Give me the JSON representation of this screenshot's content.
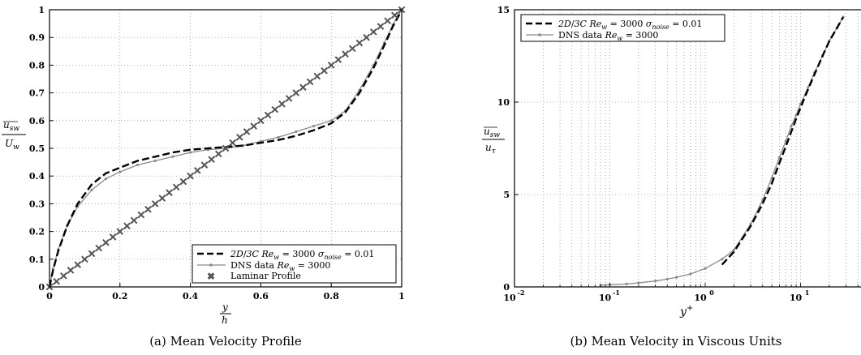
{
  "chart_data": [
    {
      "type": "line",
      "caption": "(a) Mean Velocity Profile",
      "xlabel": "y/h",
      "ylabel": "ū_sw / U_w",
      "xlim": [
        0,
        1
      ],
      "ylim": [
        0,
        1
      ],
      "xticks": [
        "0",
        "0.2",
        "0.4",
        "0.6",
        "0.8",
        "1"
      ],
      "yticks": [
        "0",
        "0.1",
        "0.2",
        "0.3",
        "0.4",
        "0.5",
        "0.6",
        "0.7",
        "0.8",
        "0.9",
        "1"
      ],
      "grid": true,
      "legend_position": "bottom-right",
      "series": [
        {
          "name": "2D/3C Re_w = 3000 σ_noise = 0.01",
          "style": "dashed",
          "color": "#000000",
          "x": [
            0,
            0.01,
            0.025,
            0.05,
            0.08,
            0.12,
            0.16,
            0.2,
            0.25,
            0.3,
            0.35,
            0.4,
            0.45,
            0.5,
            0.55,
            0.6,
            0.65,
            0.7,
            0.75,
            0.8,
            0.84,
            0.88,
            0.92,
            0.95,
            0.975,
            0.99,
            1
          ],
          "y": [
            0,
            0.06,
            0.13,
            0.22,
            0.3,
            0.37,
            0.41,
            0.43,
            0.455,
            0.47,
            0.485,
            0.495,
            0.5,
            0.505,
            0.51,
            0.52,
            0.53,
            0.545,
            0.565,
            0.59,
            0.63,
            0.7,
            0.79,
            0.87,
            0.94,
            0.975,
            1
          ]
        },
        {
          "name": "DNS data Re_w = 3000",
          "style": "solid-dot",
          "color": "#8a8a8a",
          "x": [
            0,
            0.01,
            0.025,
            0.05,
            0.08,
            0.12,
            0.16,
            0.2,
            0.25,
            0.3,
            0.35,
            0.4,
            0.45,
            0.5,
            0.55,
            0.6,
            0.65,
            0.7,
            0.75,
            0.8,
            0.84,
            0.88,
            0.92,
            0.95,
            0.975,
            0.99,
            1
          ],
          "y": [
            0,
            0.065,
            0.135,
            0.22,
            0.29,
            0.35,
            0.39,
            0.415,
            0.44,
            0.455,
            0.47,
            0.485,
            0.495,
            0.5,
            0.51,
            0.525,
            0.54,
            0.56,
            0.58,
            0.6,
            0.635,
            0.71,
            0.8,
            0.88,
            0.945,
            0.98,
            1
          ]
        },
        {
          "name": "Laminar Profile",
          "style": "x-markers",
          "color": "#555555",
          "x": [
            0,
            0.02,
            0.04,
            0.06,
            0.08,
            0.1,
            0.12,
            0.14,
            0.16,
            0.18,
            0.2,
            0.22,
            0.24,
            0.26,
            0.28,
            0.3,
            0.32,
            0.34,
            0.36,
            0.38,
            0.4,
            0.42,
            0.44,
            0.46,
            0.48,
            0.5,
            0.52,
            0.54,
            0.56,
            0.58,
            0.6,
            0.62,
            0.64,
            0.66,
            0.68,
            0.7,
            0.72,
            0.74,
            0.76,
            0.78,
            0.8,
            0.82,
            0.84,
            0.86,
            0.88,
            0.9,
            0.92,
            0.94,
            0.96,
            0.98,
            1
          ],
          "y": [
            0,
            0.02,
            0.04,
            0.06,
            0.08,
            0.1,
            0.12,
            0.14,
            0.16,
            0.18,
            0.2,
            0.22,
            0.24,
            0.26,
            0.28,
            0.3,
            0.32,
            0.34,
            0.36,
            0.38,
            0.4,
            0.42,
            0.44,
            0.46,
            0.48,
            0.5,
            0.52,
            0.54,
            0.56,
            0.58,
            0.6,
            0.62,
            0.64,
            0.66,
            0.68,
            0.7,
            0.72,
            0.74,
            0.76,
            0.78,
            0.8,
            0.82,
            0.84,
            0.86,
            0.88,
            0.9,
            0.92,
            0.94,
            0.96,
            0.98,
            1
          ]
        }
      ]
    },
    {
      "type": "line",
      "caption": "(b) Mean Velocity in Viscous Units",
      "xlabel": "y⁺",
      "ylabel": "ū_sw / u_τ",
      "xscale": "log",
      "xlim": [
        0.01,
        30
      ],
      "ylim": [
        0,
        15
      ],
      "xticks": [
        "10^-2",
        "10^-1",
        "10^0",
        "10^1"
      ],
      "yticks": [
        "0",
        "5",
        "10",
        "15"
      ],
      "grid": true,
      "legend_position": "top-left",
      "series": [
        {
          "name": "2D/3C Re_w = 3000 σ_noise = 0.01",
          "style": "dashed",
          "color": "#000000",
          "x": [
            1.5,
            2,
            3,
            4,
            5,
            6,
            7,
            8,
            9,
            10,
            12,
            14,
            17,
            20,
            24,
            28
          ],
          "y": [
            1.2,
            1.9,
            3.3,
            4.5,
            5.6,
            6.7,
            7.6,
            8.4,
            9.1,
            9.7,
            10.7,
            11.5,
            12.5,
            13.3,
            14.0,
            14.6
          ]
        },
        {
          "name": "DNS data Re_w = 3000",
          "style": "solid-dot",
          "color": "#8a8a8a",
          "x": [
            0.08,
            0.1,
            0.15,
            0.2,
            0.3,
            0.4,
            0.5,
            0.7,
            1,
            1.5,
            2,
            3,
            4,
            5,
            6,
            7,
            8,
            9,
            10,
            12,
            14,
            17,
            20,
            24,
            28
          ],
          "y": [
            0.1,
            0.12,
            0.16,
            0.22,
            0.32,
            0.42,
            0.52,
            0.7,
            1.0,
            1.5,
            2.0,
            3.4,
            4.7,
            5.9,
            7.0,
            7.9,
            8.7,
            9.3,
            9.9,
            10.8,
            11.6,
            12.5,
            13.3,
            14.0,
            14.6
          ]
        }
      ]
    }
  ]
}
